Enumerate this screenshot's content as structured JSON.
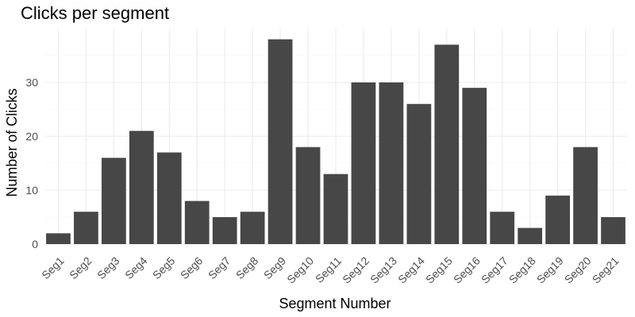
{
  "chart_data": {
    "type": "bar",
    "title": "Clicks per segment",
    "xlabel": "Segment Number",
    "ylabel": "Number of Clicks",
    "categories": [
      "Seg1",
      "Seg2",
      "Seg3",
      "Seg4",
      "Seg5",
      "Seg6",
      "Seg7",
      "Seg8",
      "Seg9",
      "Seg10",
      "Seg11",
      "Seg12",
      "Seg13",
      "Seg14",
      "Seg15",
      "Seg16",
      "Seg17",
      "Seg18",
      "Seg19",
      "Seg20",
      "Seg21"
    ],
    "values": [
      2,
      6,
      16,
      21,
      17,
      8,
      5,
      6,
      38,
      18,
      13,
      30,
      30,
      26,
      37,
      29,
      6,
      3,
      9,
      18,
      5
    ],
    "ylim": [
      0,
      40
    ],
    "yticks": [
      0,
      10,
      20,
      30
    ],
    "grid": true,
    "bar_color": "#474747"
  }
}
